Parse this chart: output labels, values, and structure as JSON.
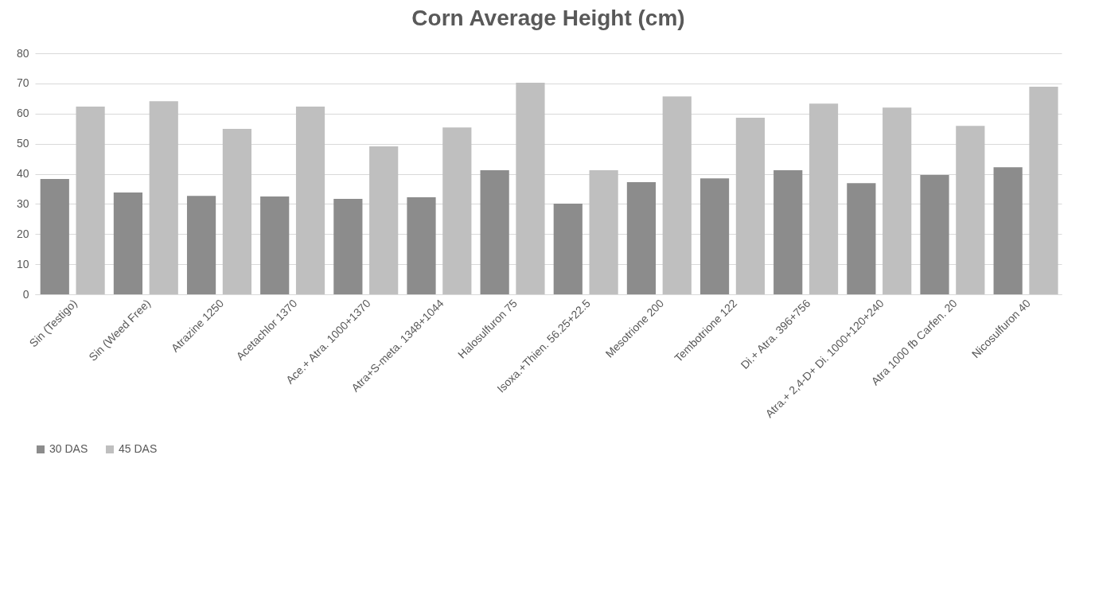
{
  "chart_data": {
    "type": "bar",
    "title": "Corn Average Height (cm)",
    "categories": [
      "Sin (Testigo)",
      "Sin (Weed Free)",
      "Atrazine 1250",
      "Acetachlor 1370",
      "Ace.+ Atra. 1000+1370",
      "Atra+S-meta. 1348+1044",
      "Halosulfuron 75",
      "Isoxa.+Thien. 56.25+22.5",
      "Mesotrione 200",
      "Tembotrione 122",
      "Di.+ Atra. 396+756",
      "Atra.+ 2,4-D+ Di. 1000+120+240",
      "Atra 1000 fb Carfen. 20",
      "Nicosulfuron 40"
    ],
    "series": [
      {
        "name": "30 DAS",
        "color": "#8c8c8c",
        "values": [
          38.3,
          33.8,
          32.7,
          32.5,
          31.7,
          32.2,
          41.2,
          30.1,
          37.2,
          38.5,
          41.2,
          36.9,
          39.6,
          42.2
        ]
      },
      {
        "name": "45 DAS",
        "color": "#bfbfbf",
        "values": [
          62.3,
          64.1,
          54.9,
          62.3,
          49.1,
          55.4,
          70.2,
          41.2,
          65.7,
          58.6,
          63.3,
          62.0,
          55.9,
          68.9
        ]
      }
    ],
    "ylim": [
      0,
      80
    ],
    "yticks": [
      0,
      10,
      20,
      30,
      40,
      50,
      60,
      70,
      80
    ],
    "grid": "y",
    "legend": "bottom"
  }
}
